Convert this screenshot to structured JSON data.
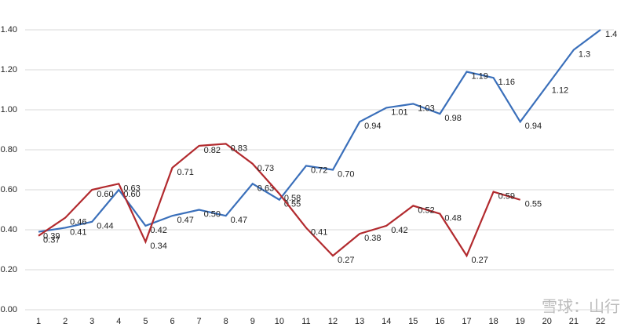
{
  "chart_data": {
    "type": "line",
    "categories": [
      "1",
      "2",
      "3",
      "4",
      "5",
      "6",
      "7",
      "8",
      "9",
      "10",
      "11",
      "12",
      "13",
      "14",
      "15",
      "16",
      "17",
      "18",
      "19",
      "20",
      "21",
      "22"
    ],
    "series": [
      {
        "color": "#3a6fba",
        "values": [
          0.39,
          0.41,
          0.44,
          0.6,
          0.42,
          0.47,
          0.5,
          0.47,
          0.63,
          0.55,
          0.72,
          0.7,
          0.94,
          1.01,
          1.03,
          0.98,
          1.19,
          1.16,
          0.94,
          1.12,
          1.3,
          1.4
        ],
        "value_labels": [
          "0.39",
          "0.41",
          "0.44",
          "0.60",
          "0.42",
          "0.47",
          "0.50",
          "0.47",
          "0.63",
          "0.55",
          "0.72",
          "0.70",
          "0.94",
          "1.01",
          "1.03",
          "0.98",
          "1.19",
          "1.16",
          "0.94",
          "1.12",
          "1.3",
          "1.4"
        ]
      },
      {
        "color": "#b22a2e",
        "values": [
          0.37,
          0.46,
          0.6,
          0.63,
          0.34,
          0.71,
          0.82,
          0.83,
          0.73,
          0.58,
          0.41,
          0.27,
          0.38,
          0.42,
          0.52,
          0.48,
          0.27,
          0.59,
          0.55,
          null,
          null,
          null
        ],
        "value_labels": [
          "0.37",
          "0.46",
          "0.60",
          "0.63",
          "0.34",
          "0.71",
          "0.82",
          "0.83",
          "0.73",
          "0.58",
          "0.41",
          "0.27",
          "0.38",
          "0.42",
          "0.52",
          "0.48",
          "0.27",
          "0.59",
          "0.55",
          null,
          null,
          null
        ]
      }
    ],
    "ylim": [
      0,
      1.4
    ],
    "yticks": [
      {
        "value": 0,
        "label": "0.00"
      },
      {
        "value": 0.2,
        "label": "0.20"
      },
      {
        "value": 0.4,
        "label": "0.40"
      },
      {
        "value": 0.6,
        "label": "0.60"
      },
      {
        "value": 0.8,
        "label": "0.80"
      },
      {
        "value": 1.0,
        "label": "1.00"
      },
      {
        "value": 1.2,
        "label": "1.20"
      },
      {
        "value": 1.4,
        "label": "1.40"
      }
    ],
    "grid": true,
    "watermark": "雪球：山行"
  }
}
